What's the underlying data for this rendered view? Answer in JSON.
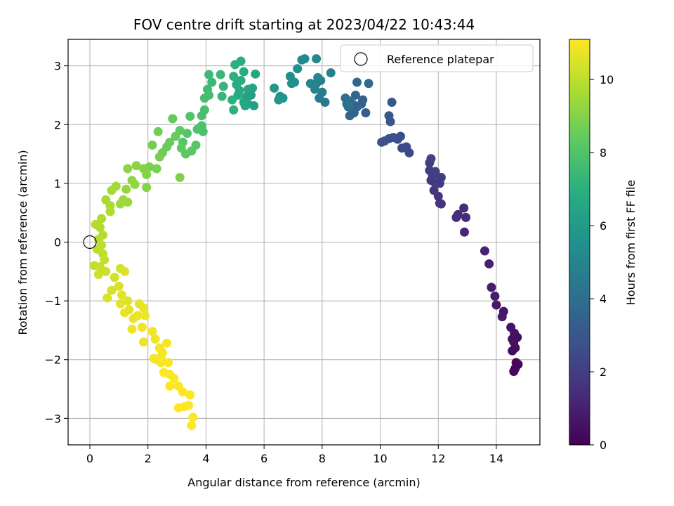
{
  "chart_data": {
    "type": "scatter",
    "title": "FOV centre drift starting at 2023/04/22 10:43:44",
    "xlabel": "Angular distance from reference (arcmin)",
    "ylabel": "Rotation from reference (arcmin)",
    "xlim": [
      -0.75,
      15.5
    ],
    "ylim": [
      -3.45,
      3.45
    ],
    "x_ticks": [
      0,
      2,
      4,
      6,
      8,
      10,
      12,
      14
    ],
    "y_ticks": [
      -3,
      -2,
      -1,
      0,
      1,
      2,
      3
    ],
    "grid": true,
    "legend": {
      "position": "upper-right",
      "entries": [
        "Reference platepar"
      ]
    },
    "reference_point": {
      "x": 0.0,
      "y": 0.0
    },
    "colorbar": {
      "label": "Hours from first FF file",
      "range": [
        0,
        11.1
      ],
      "ticks": [
        0,
        2,
        4,
        6,
        8,
        10
      ],
      "colormap": "viridis"
    },
    "points": [
      [
        14.75,
        -2.08,
        0.05
      ],
      [
        14.7,
        -2.1,
        0.1
      ],
      [
        14.65,
        -2.15,
        0.15
      ],
      [
        14.6,
        -2.2,
        0.2
      ],
      [
        14.68,
        -2.05,
        0.25
      ],
      [
        14.55,
        -1.85,
        0.3
      ],
      [
        14.65,
        -1.8,
        0.35
      ],
      [
        14.6,
        -1.7,
        0.4
      ],
      [
        14.72,
        -1.62,
        0.45
      ],
      [
        14.55,
        -1.65,
        0.5
      ],
      [
        14.62,
        -1.55,
        0.55
      ],
      [
        14.5,
        -1.45,
        0.6
      ],
      [
        14.25,
        -1.18,
        0.7
      ],
      [
        14.2,
        -1.27,
        0.75
      ],
      [
        14.0,
        -1.07,
        0.8
      ],
      [
        13.95,
        -0.92,
        0.85
      ],
      [
        13.83,
        -0.77,
        0.9
      ],
      [
        13.75,
        -0.37,
        1.0
      ],
      [
        13.6,
        -0.15,
        1.05
      ],
      [
        12.9,
        0.17,
        1.2
      ],
      [
        12.95,
        0.42,
        1.3
      ],
      [
        12.88,
        0.58,
        1.35
      ],
      [
        12.62,
        0.42,
        1.45
      ],
      [
        12.68,
        0.47,
        1.5
      ],
      [
        12.1,
        0.65,
        1.6
      ],
      [
        12.05,
        0.66,
        1.65
      ],
      [
        12.0,
        0.78,
        1.7
      ],
      [
        11.85,
        0.88,
        1.75
      ],
      [
        11.75,
        1.05,
        1.8
      ],
      [
        11.9,
        1.0,
        1.85
      ],
      [
        12.05,
        1.0,
        1.9
      ],
      [
        12.1,
        1.1,
        1.95
      ],
      [
        11.8,
        1.12,
        2.0
      ],
      [
        11.7,
        1.22,
        2.05
      ],
      [
        11.9,
        1.2,
        2.1
      ],
      [
        11.7,
        1.35,
        2.15
      ],
      [
        11.75,
        1.42,
        2.2
      ],
      [
        11.0,
        1.52,
        2.4
      ],
      [
        10.9,
        1.62,
        2.45
      ],
      [
        10.75,
        1.6,
        2.5
      ],
      [
        10.7,
        1.8,
        2.6
      ],
      [
        10.6,
        1.75,
        2.65
      ],
      [
        10.45,
        1.78,
        2.7
      ],
      [
        10.3,
        1.76,
        2.75
      ],
      [
        10.15,
        1.72,
        2.8
      ],
      [
        10.05,
        1.7,
        2.85
      ],
      [
        10.35,
        2.05,
        2.9
      ],
      [
        10.3,
        2.15,
        2.95
      ],
      [
        10.4,
        2.38,
        3.0
      ],
      [
        9.5,
        2.2,
        3.3
      ],
      [
        9.35,
        2.35,
        3.35
      ],
      [
        9.4,
        2.42,
        3.4
      ],
      [
        9.1,
        2.2,
        3.5
      ],
      [
        9.2,
        2.3,
        3.55
      ],
      [
        9.05,
        2.35,
        3.6
      ],
      [
        8.95,
        2.15,
        3.65
      ],
      [
        9.15,
        2.5,
        3.7
      ],
      [
        9.2,
        2.72,
        3.75
      ],
      [
        9.6,
        2.7,
        3.8
      ],
      [
        8.8,
        2.45,
        3.9
      ],
      [
        8.85,
        2.35,
        4.0
      ],
      [
        8.95,
        2.4,
        4.05
      ],
      [
        8.9,
        2.3,
        4.1
      ],
      [
        8.1,
        2.38,
        4.4
      ],
      [
        7.9,
        2.45,
        4.5
      ],
      [
        8.0,
        2.55,
        4.6
      ],
      [
        7.8,
        2.7,
        4.7
      ],
      [
        7.95,
        2.75,
        4.75
      ],
      [
        8.3,
        2.88,
        4.8
      ],
      [
        7.75,
        2.6,
        4.9
      ],
      [
        7.7,
        2.68,
        4.95
      ],
      [
        7.6,
        2.7,
        5.0
      ],
      [
        7.85,
        2.8,
        5.05
      ],
      [
        7.8,
        3.12,
        5.1
      ],
      [
        7.4,
        3.12,
        5.2
      ],
      [
        7.3,
        3.1,
        5.25
      ],
      [
        7.05,
        2.72,
        5.4
      ],
      [
        7.15,
        2.95,
        5.45
      ],
      [
        6.9,
        2.82,
        5.5
      ],
      [
        6.95,
        2.7,
        5.55
      ],
      [
        6.65,
        2.45,
        5.7
      ],
      [
        6.55,
        2.48,
        5.75
      ],
      [
        6.5,
        2.42,
        5.8
      ],
      [
        6.35,
        2.62,
        5.85
      ],
      [
        5.65,
        2.32,
        6.2
      ],
      [
        5.55,
        2.5,
        6.25
      ],
      [
        5.45,
        2.35,
        6.3
      ],
      [
        5.4,
        2.48,
        6.35
      ],
      [
        5.6,
        2.62,
        6.4
      ],
      [
        5.45,
        2.6,
        6.45
      ],
      [
        5.7,
        2.86,
        6.5
      ],
      [
        5.35,
        2.32,
        6.55
      ],
      [
        5.3,
        2.38,
        6.6
      ],
      [
        5.1,
        2.5,
        6.7
      ],
      [
        5.15,
        2.58,
        6.75
      ],
      [
        5.05,
        2.68,
        6.8
      ],
      [
        5.2,
        2.75,
        6.85
      ],
      [
        5.3,
        2.9,
        6.9
      ],
      [
        5.2,
        3.08,
        6.95
      ],
      [
        5.0,
        3.02,
        7.0
      ],
      [
        4.95,
        2.82,
        7.05
      ],
      [
        4.9,
        2.42,
        7.1
      ],
      [
        4.95,
        2.25,
        7.15
      ],
      [
        4.6,
        2.65,
        7.3
      ],
      [
        4.55,
        2.48,
        7.35
      ],
      [
        4.5,
        2.85,
        7.4
      ],
      [
        4.2,
        2.72,
        7.45
      ],
      [
        4.1,
        2.85,
        7.5
      ],
      [
        4.05,
        2.6,
        7.6
      ],
      [
        4.1,
        2.5,
        7.65
      ],
      [
        3.95,
        2.45,
        7.7
      ],
      [
        3.95,
        2.25,
        7.75
      ],
      [
        3.85,
        2.15,
        7.8
      ],
      [
        3.85,
        1.98,
        7.85
      ],
      [
        3.9,
        1.88,
        7.9
      ],
      [
        3.7,
        1.92,
        7.95
      ],
      [
        3.45,
        2.14,
        8.0
      ],
      [
        3.35,
        1.85,
        8.05
      ],
      [
        3.2,
        1.7,
        8.1
      ],
      [
        3.65,
        1.65,
        8.15
      ],
      [
        3.5,
        1.55,
        8.2
      ],
      [
        3.3,
        1.5,
        8.25
      ],
      [
        3.15,
        1.6,
        8.3
      ],
      [
        3.1,
        1.9,
        8.35
      ],
      [
        2.85,
        2.1,
        8.4
      ],
      [
        2.95,
        1.8,
        8.45
      ],
      [
        2.75,
        1.7,
        8.5
      ],
      [
        2.65,
        1.62,
        8.55
      ],
      [
        2.5,
        1.52,
        8.6
      ],
      [
        2.35,
        1.88,
        8.65
      ],
      [
        2.15,
        1.65,
        8.7
      ],
      [
        2.4,
        1.45,
        8.75
      ],
      [
        2.3,
        1.25,
        8.8
      ],
      [
        2.05,
        1.28,
        8.85
      ],
      [
        3.1,
        1.1,
        8.9
      ],
      [
        1.95,
        1.15,
        8.95
      ],
      [
        1.85,
        1.25,
        9.0
      ],
      [
        1.95,
        0.93,
        9.05
      ],
      [
        1.6,
        1.3,
        9.1
      ],
      [
        1.3,
        1.25,
        9.15
      ],
      [
        1.45,
        1.05,
        9.2
      ],
      [
        1.55,
        0.98,
        9.25
      ],
      [
        1.25,
        0.9,
        9.3
      ],
      [
        1.15,
        0.72,
        9.35
      ],
      [
        1.3,
        0.68,
        9.4
      ],
      [
        1.05,
        0.65,
        9.45
      ],
      [
        0.9,
        0.95,
        9.5
      ],
      [
        0.75,
        0.88,
        9.55
      ],
      [
        0.55,
        0.72,
        9.6
      ],
      [
        0.7,
        0.62,
        9.65
      ],
      [
        0.7,
        0.52,
        9.7
      ],
      [
        0.4,
        0.4,
        9.75
      ],
      [
        0.35,
        0.25,
        9.8
      ],
      [
        0.45,
        0.12,
        9.85
      ],
      [
        0.3,
        0.05,
        9.9
      ],
      [
        0.4,
        -0.05,
        9.95
      ],
      [
        0.25,
        -0.12,
        10.0
      ],
      [
        0.45,
        -0.2,
        10.05
      ],
      [
        0.15,
        -0.4,
        10.1
      ],
      [
        0.35,
        -0.42,
        10.15
      ],
      [
        0.55,
        -0.5,
        10.2
      ],
      [
        0.3,
        -0.55,
        10.25
      ],
      [
        0.85,
        -0.6,
        10.3
      ],
      [
        1.05,
        -0.45,
        10.35
      ],
      [
        0.75,
        -0.82,
        10.4
      ],
      [
        0.6,
        -0.95,
        10.45
      ],
      [
        1.0,
        -0.75,
        10.5
      ],
      [
        1.2,
        -0.5,
        10.55
      ],
      [
        1.1,
        -0.9,
        10.6
      ],
      [
        1.3,
        -1.0,
        10.62
      ],
      [
        1.05,
        -1.05,
        10.65
      ],
      [
        1.35,
        -1.15,
        10.68
      ],
      [
        1.2,
        -1.2,
        10.7
      ],
      [
        1.5,
        -1.3,
        10.72
      ],
      [
        1.7,
        -1.05,
        10.74
      ],
      [
        1.85,
        -1.12,
        10.76
      ],
      [
        1.65,
        -1.25,
        10.78
      ],
      [
        1.45,
        -1.48,
        10.8
      ],
      [
        1.9,
        -1.25,
        10.82
      ],
      [
        1.8,
        -1.45,
        10.84
      ],
      [
        1.85,
        -1.7,
        10.86
      ],
      [
        2.15,
        -1.52,
        10.88
      ],
      [
        2.25,
        -1.65,
        10.9
      ],
      [
        2.4,
        -1.8,
        10.92
      ],
      [
        2.2,
        -1.98,
        10.94
      ],
      [
        2.5,
        -1.88,
        10.96
      ],
      [
        2.45,
        -2.05,
        10.98
      ],
      [
        2.65,
        -1.72,
        11.0
      ],
      [
        2.7,
        -2.05,
        11.02
      ],
      [
        2.55,
        -2.22,
        11.04
      ],
      [
        2.75,
        -2.25,
        11.05
      ],
      [
        3.05,
        -2.45,
        11.06
      ],
      [
        2.9,
        -2.32,
        11.07
      ],
      [
        2.75,
        -2.45,
        11.08
      ],
      [
        3.2,
        -2.55,
        11.08
      ],
      [
        3.45,
        -2.6,
        11.09
      ],
      [
        3.4,
        -2.78,
        11.09
      ],
      [
        3.25,
        -2.8,
        11.1
      ],
      [
        3.05,
        -2.82,
        11.1
      ],
      [
        3.55,
        -2.98,
        11.1
      ],
      [
        3.5,
        -3.12,
        11.1
      ],
      [
        2.3,
        -2.0,
        10.95
      ],
      [
        2.45,
        -1.95,
        10.97
      ],
      [
        0.2,
        0.3,
        9.78
      ],
      [
        0.5,
        -0.3,
        10.1
      ]
    ]
  }
}
